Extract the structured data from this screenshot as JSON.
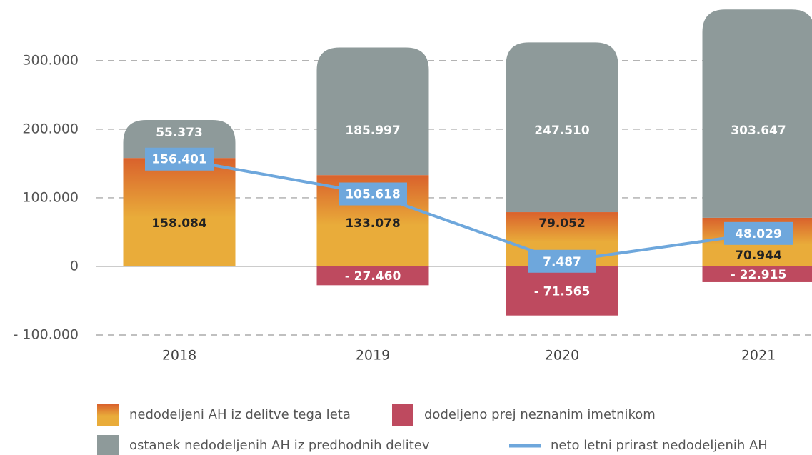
{
  "chart_data": {
    "type": "bar",
    "categories": [
      "2018",
      "2019",
      "2020",
      "2021"
    ],
    "series": [
      {
        "name": "nedodeljeni AH iz delitve tega leta",
        "color": [
          "#d9612c",
          "#e9ac3a"
        ],
        "values": [
          158084,
          133078,
          79052,
          70944
        ],
        "value_labels": [
          "158.084",
          "133.078",
          "79.052",
          "70.944"
        ]
      },
      {
        "name": "dodeljeno prej neznanim imetnikom",
        "color": "#be4a5f",
        "values": [
          null,
          -27460,
          -71565,
          -22915
        ],
        "value_labels": [
          null,
          "- 27.460",
          "- 71.565",
          "- 22.915"
        ]
      },
      {
        "name": "ostanek nedodeljenih AH iz predhodnih delitev",
        "color": "#8e9a9a",
        "values": [
          55373,
          185997,
          247510,
          303647
        ],
        "value_labels": [
          "55.373",
          "185.997",
          "247.510",
          "303.647"
        ]
      },
      {
        "name": "neto letni prirast nedodeljenih AH",
        "type": "line",
        "color": "#6ea7dc",
        "values": [
          156401,
          105618,
          7487,
          48029
        ],
        "value_labels": [
          "156.401",
          "105.618",
          "7.487",
          "48.029"
        ]
      }
    ],
    "ylim": [
      -100000,
      380000
    ],
    "yticks": [
      {
        "value": -100000,
        "label": "- 100.000"
      },
      0,
      {
        "value": 100000,
        "label": "100.000"
      },
      {
        "value": 200000,
        "label": "200.000"
      },
      {
        "value": 300000,
        "label": "300.000"
      }
    ],
    "grid": true
  }
}
